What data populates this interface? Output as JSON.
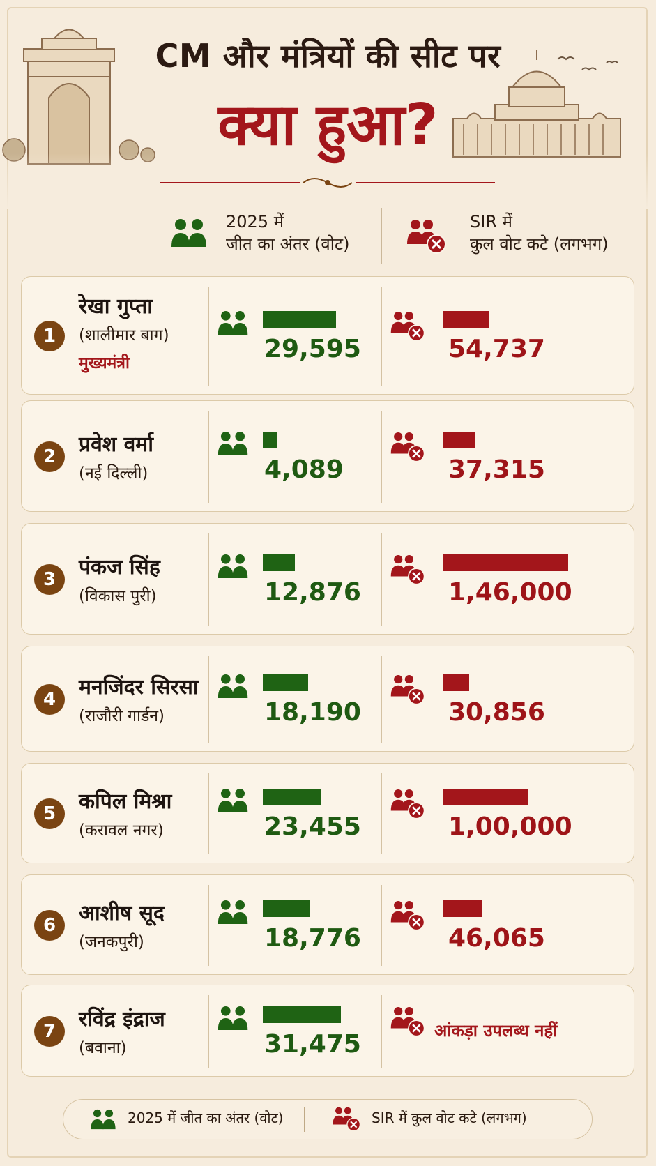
{
  "title_line1": "CM और मंत्रियों की सीट पर",
  "title_line2": "क्या हुआ?",
  "columns": {
    "margin_line1": "2025 में",
    "margin_line2": "जीत का अंतर (वोट)",
    "cut_line1": "SIR में",
    "cut_line2": "कुल वोट कटे (लगभग)"
  },
  "rows": [
    {
      "rank": "1",
      "name": "रेखा गुप्ता",
      "seat": "(शालीमार बाग)",
      "role": "मुख्यमंत्री",
      "margin": 29595,
      "margin_label": "29,595",
      "cut": 54737,
      "cut_label": "54,737"
    },
    {
      "rank": "2",
      "name": "प्रवेश वर्मा",
      "seat": "(नई दिल्ली)",
      "role": "",
      "margin": 4089,
      "margin_label": "4,089",
      "cut": 37315,
      "cut_label": "37,315"
    },
    {
      "rank": "3",
      "name": "पंकज सिंह",
      "seat": "(विकास पुरी)",
      "role": "",
      "margin": 12876,
      "margin_label": "12,876",
      "cut": 146000,
      "cut_label": "1,46,000"
    },
    {
      "rank": "4",
      "name": "मनजिंदर सिरसा",
      "seat": "(राजौरी गार्डन)",
      "role": "",
      "margin": 18190,
      "margin_label": "18,190",
      "cut": 30856,
      "cut_label": "30,856"
    },
    {
      "rank": "5",
      "name": "कपिल मिश्रा",
      "seat": "(करावल नगर)",
      "role": "",
      "margin": 23455,
      "margin_label": "23,455",
      "cut": 100000,
      "cut_label": "1,00,000"
    },
    {
      "rank": "6",
      "name": "आशीष सूद",
      "seat": "(जनकपुरी)",
      "role": "",
      "margin": 18776,
      "margin_label": "18,776",
      "cut": 46065,
      "cut_label": "46,065"
    },
    {
      "rank": "7",
      "name": "रविंद्र इंद्राज",
      "seat": "(बवाना)",
      "role": "",
      "margin": 31475,
      "margin_label": "31,475",
      "cut": null,
      "cut_label": "आंकड़ा उपलब्ध नहीं"
    }
  ],
  "legend": {
    "margin": "2025 में जीत का अंतर (वोट)",
    "cut": "SIR में कुल वोट कटे (लगभग)"
  },
  "colors": {
    "green": "#1f6314",
    "red": "#a3161b",
    "background": "#f6ecdd"
  },
  "icons": {
    "margin": "two-people-icon",
    "cut": "people-cross-icon"
  },
  "chart_data": {
    "type": "bar",
    "categories": [
      "रेखा गुप्ता",
      "प्रवेश वर्मा",
      "पंकज सिंह",
      "मनजिंदर सिरसा",
      "कपिल मिश्रा",
      "आशीष सूद",
      "रविंद्र इंद्राज"
    ],
    "series": [
      {
        "name": "2025 में जीत का अंतर (वोट)",
        "values": [
          29595,
          4089,
          12876,
          18190,
          23455,
          18776,
          31475
        ]
      },
      {
        "name": "SIR में कुल वोट कटे (लगभग)",
        "values": [
          54737,
          37315,
          146000,
          30856,
          100000,
          46065,
          null
        ]
      }
    ],
    "title": "CM और मंत्रियों की सीट पर क्या हुआ?",
    "xlabel": "",
    "ylabel": "",
    "orientation": "horizontal",
    "legend_position": "bottom"
  }
}
